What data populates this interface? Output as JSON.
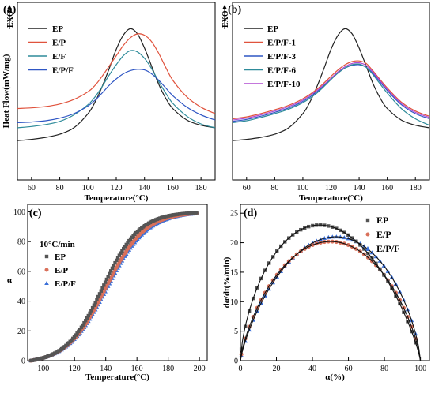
{
  "chart_data": [
    {
      "panel_label": "(a)",
      "type": "line",
      "exo_label": "EXO",
      "xlabel": "Temperature(°C)",
      "ylabel": "Heat Flow(mW/mg)",
      "xlim": [
        50,
        190
      ],
      "xticks": [
        60,
        80,
        100,
        120,
        140,
        160,
        180
      ],
      "yticks_shown": false,
      "ylim": [
        0,
        10
      ],
      "grid": false,
      "legend_position": "top-left",
      "series": [
        {
          "name": "EP",
          "color": "#222222",
          "x": [
            50,
            60,
            70,
            80,
            90,
            100,
            105,
            110,
            115,
            120,
            125,
            130,
            135,
            140,
            145,
            150,
            155,
            160,
            170,
            180,
            190
          ],
          "y": [
            0.6,
            0.7,
            0.85,
            1.1,
            1.6,
            2.7,
            3.6,
            4.8,
            6.2,
            7.7,
            8.8,
            9.3,
            8.9,
            7.8,
            6.4,
            5.0,
            3.9,
            3.1,
            2.2,
            1.8,
            1.6
          ]
        },
        {
          "name": "E/P",
          "color": "#e0533d",
          "x": [
            50,
            60,
            70,
            80,
            90,
            100,
            105,
            110,
            115,
            120,
            125,
            130,
            135,
            140,
            145,
            150,
            155,
            160,
            170,
            180,
            190
          ],
          "y": [
            3.1,
            3.15,
            3.25,
            3.45,
            3.8,
            4.4,
            4.9,
            5.6,
            6.4,
            7.2,
            8.0,
            8.6,
            8.9,
            8.8,
            8.3,
            7.4,
            6.3,
            5.3,
            4.0,
            3.2,
            2.7
          ]
        },
        {
          "name": "E/F",
          "color": "#2e8b9a",
          "x": [
            50,
            60,
            70,
            80,
            90,
            100,
            105,
            110,
            115,
            120,
            125,
            130,
            135,
            140,
            145,
            150,
            155,
            160,
            170,
            180,
            190
          ],
          "y": [
            1.6,
            1.7,
            1.85,
            2.1,
            2.6,
            3.4,
            4.0,
            4.8,
            5.7,
            6.5,
            7.2,
            7.6,
            7.5,
            7.0,
            6.2,
            5.2,
            4.3,
            3.5,
            2.5,
            1.9,
            1.6
          ]
        },
        {
          "name": "E/P/F",
          "color": "#2f56c4",
          "x": [
            50,
            60,
            70,
            80,
            90,
            100,
            105,
            110,
            115,
            120,
            125,
            130,
            135,
            140,
            145,
            150,
            155,
            160,
            170,
            180,
            190
          ],
          "y": [
            2.0,
            2.05,
            2.15,
            2.35,
            2.7,
            3.3,
            3.75,
            4.3,
            4.9,
            5.4,
            5.8,
            6.05,
            6.15,
            6.1,
            5.8,
            5.3,
            4.7,
            4.1,
            3.2,
            2.6,
            2.2
          ]
        }
      ]
    },
    {
      "panel_label": "(b)",
      "type": "line",
      "exo_label": "EXO",
      "xlabel": "Temperature(°C)",
      "ylabel": "",
      "xlim": [
        50,
        190
      ],
      "xticks": [
        60,
        80,
        100,
        120,
        140,
        160,
        180
      ],
      "yticks_shown": false,
      "ylim": [
        0,
        10
      ],
      "grid": false,
      "legend_position": "top-left",
      "series": [
        {
          "name": "EP",
          "color": "#222222",
          "x": [
            50,
            60,
            70,
            80,
            90,
            100,
            105,
            110,
            115,
            120,
            125,
            130,
            135,
            140,
            145,
            150,
            155,
            160,
            170,
            180,
            190
          ],
          "y": [
            0.6,
            0.7,
            0.85,
            1.1,
            1.6,
            2.7,
            3.6,
            4.8,
            6.2,
            7.7,
            8.8,
            9.3,
            8.9,
            7.8,
            6.4,
            5.0,
            3.9,
            3.1,
            2.2,
            1.8,
            1.6
          ]
        },
        {
          "name": "E/P/F-1",
          "color": "#e0533d",
          "x": [
            50,
            60,
            70,
            80,
            90,
            100,
            110,
            120,
            125,
            130,
            135,
            140,
            145,
            150,
            160,
            170,
            180,
            190
          ],
          "y": [
            2.3,
            2.45,
            2.7,
            3.0,
            3.35,
            3.85,
            4.6,
            5.6,
            6.1,
            6.5,
            6.75,
            6.8,
            6.6,
            6.0,
            4.7,
            3.6,
            2.9,
            2.5
          ]
        },
        {
          "name": "E/P/F-3",
          "color": "#2f56c4",
          "x": [
            50,
            60,
            70,
            80,
            90,
            100,
            110,
            120,
            125,
            130,
            135,
            140,
            145,
            150,
            160,
            170,
            180,
            190
          ],
          "y": [
            2.1,
            2.25,
            2.5,
            2.8,
            3.15,
            3.65,
            4.4,
            5.4,
            5.9,
            6.25,
            6.45,
            6.5,
            6.3,
            5.8,
            4.5,
            3.4,
            2.7,
            2.3
          ]
        },
        {
          "name": "E/P/F-6",
          "color": "#2e8b9a",
          "x": [
            50,
            60,
            70,
            80,
            90,
            100,
            110,
            120,
            125,
            130,
            135,
            140,
            145,
            150,
            160,
            170,
            180,
            190
          ],
          "y": [
            2.0,
            2.15,
            2.4,
            2.7,
            3.05,
            3.55,
            4.3,
            5.35,
            5.85,
            6.25,
            6.5,
            6.55,
            6.3,
            5.7,
            4.3,
            3.1,
            2.3,
            1.8
          ]
        },
        {
          "name": "E/P/F-10",
          "color": "#b04ad1",
          "x": [
            50,
            60,
            70,
            80,
            90,
            100,
            110,
            120,
            125,
            130,
            135,
            140,
            145,
            150,
            160,
            170,
            180,
            190
          ],
          "y": [
            2.2,
            2.35,
            2.6,
            2.9,
            3.25,
            3.75,
            4.5,
            5.45,
            5.95,
            6.35,
            6.6,
            6.65,
            6.45,
            5.9,
            4.6,
            3.5,
            2.8,
            2.4
          ]
        }
      ]
    },
    {
      "panel_label": "(c)",
      "type": "scatter",
      "xlabel": "Temperature(°C)",
      "ylabel": "α",
      "xlim": [
        90,
        205
      ],
      "ylim": [
        0,
        105
      ],
      "xticks": [
        100,
        120,
        140,
        160,
        180,
        200
      ],
      "yticks": [
        0,
        20,
        40,
        60,
        80,
        100
      ],
      "grid": false,
      "legend_title": "10°C/min",
      "legend_position": "upper-left",
      "series": [
        {
          "name": "EP",
          "color": "#555555",
          "marker": "square",
          "x0": 92,
          "x1": 199,
          "mid": 138,
          "k": 0.085
        },
        {
          "name": "E/P",
          "color": "#d9705a",
          "marker": "circle",
          "x0": 92,
          "x1": 199,
          "mid": 140,
          "k": 0.08
        },
        {
          "name": "E/P/F",
          "color": "#3a6fd8",
          "marker": "triangle",
          "x0": 92,
          "x1": 199,
          "mid": 141,
          "k": 0.078
        }
      ]
    },
    {
      "panel_label": "(d)",
      "type": "scatter",
      "xlabel": "α(%)",
      "ylabel": "dα/dt(%/min)",
      "xlim": [
        0,
        105
      ],
      "ylim": [
        0,
        26.5
      ],
      "xticks": [
        0,
        20,
        40,
        60,
        80,
        100
      ],
      "yticks": [
        0,
        5,
        10,
        15,
        20,
        25
      ],
      "grid": false,
      "legend_position": "upper-right",
      "series": [
        {
          "name": "EP",
          "color": "#555555",
          "marker": "square",
          "peak_x": 44,
          "peak_y": 23.0
        },
        {
          "name": "E/P",
          "color": "#d9705a",
          "marker": "circle",
          "peak_x": 50,
          "peak_y": 20.2
        },
        {
          "name": "E/P/F",
          "color": "#3a6fd8",
          "marker": "triangle",
          "peak_x": 53,
          "peak_y": 21.0
        }
      ]
    }
  ]
}
